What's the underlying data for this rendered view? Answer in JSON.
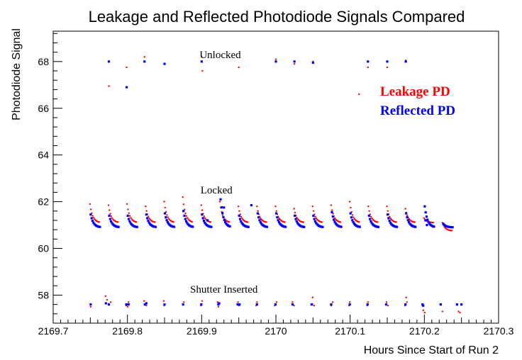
{
  "chart_data": {
    "type": "scatter",
    "title": "Leakage and Reflected Photodiode Signals Compared",
    "xlabel": "Hours Since Start of Run 2",
    "ylabel": "Photodiode Signal",
    "xlim": [
      2169.7,
      2170.3
    ],
    "ylim": [
      56.8,
      69.3
    ],
    "x_ticks": [
      2169.7,
      2169.8,
      2169.9,
      2170.0,
      2170.1,
      2170.2,
      2170.3
    ],
    "x_tick_labels": [
      "2169.7",
      "2169.8",
      "2169.9",
      "2170",
      "2170.1",
      "2170.2",
      "2170.3"
    ],
    "y_ticks": [
      58,
      60,
      62,
      64,
      66,
      68
    ],
    "y_tick_labels": [
      "58",
      "60",
      "62",
      "64",
      "66",
      "68"
    ],
    "grid": false,
    "legend_position": "top-right",
    "annotations": [
      {
        "text": "Unlocked",
        "x": 2169.925,
        "y": 68.15
      },
      {
        "text": "Locked",
        "x": 2169.92,
        "y": 62.35
      },
      {
        "text": "Shutter Inserted",
        "x": 2169.93,
        "y": 58.1
      }
    ],
    "series": [
      {
        "name": "Leakage PD",
        "color": "#ff0000",
        "marker": "dot",
        "unlocked_points": [
          [
            2169.775,
            66.95
          ],
          [
            2169.799,
            67.75
          ],
          [
            2169.823,
            68.2
          ],
          [
            2169.9,
            68.2
          ],
          [
            2169.901,
            67.6
          ],
          [
            2169.95,
            67.75
          ],
          [
            2170.0,
            68.1
          ],
          [
            2170.025,
            67.9
          ],
          [
            2170.05,
            68.0
          ],
          [
            2170.112,
            66.6
          ],
          [
            2170.124,
            67.75
          ],
          [
            2170.15,
            67.75
          ],
          [
            2170.175,
            68.05
          ]
        ],
        "locked_cycles": {
          "starts": [
            2169.7495,
            2169.7745,
            2169.7995,
            2169.8245,
            2169.8495,
            2169.8745,
            2169.8995,
            2169.9245,
            2169.9495,
            2169.9745,
            2169.9995,
            2170.0245,
            2170.0495,
            2170.0745,
            2170.0995,
            2170.1245,
            2170.1495,
            2170.1745,
            2170.1995,
            2170.2245
          ],
          "peaks": [
            61.9,
            61.85,
            61.9,
            61.8,
            62.0,
            62.2,
            61.85,
            62.0,
            61.8,
            61.8,
            61.8,
            61.7,
            61.8,
            61.85,
            62.0,
            61.8,
            61.8,
            61.7,
            61.3,
            61.5
          ],
          "points_per_cycle": 11,
          "step_hours": 0.00125,
          "end_value": 61.1,
          "final_cycle": {
            "peak": 61.1,
            "end_value": 60.75
          }
        },
        "shutter_points": [
          [
            2169.7505,
            57.5
          ],
          [
            2169.7705,
            57.95
          ],
          [
            2169.7725,
            57.8
          ],
          [
            2169.7775,
            57.7
          ],
          [
            2169.7985,
            57.55
          ],
          [
            2169.8005,
            57.5
          ],
          [
            2169.8015,
            57.7
          ],
          [
            2169.8225,
            57.75
          ],
          [
            2169.8255,
            57.55
          ],
          [
            2169.849,
            57.75
          ],
          [
            2169.8495,
            57.55
          ],
          [
            2169.876,
            57.7
          ],
          [
            2169.899,
            57.55
          ],
          [
            2169.9005,
            57.75
          ],
          [
            2169.9215,
            57.7
          ],
          [
            2169.9225,
            57.5
          ],
          [
            2169.949,
            57.7
          ],
          [
            2169.9505,
            57.55
          ],
          [
            2169.9735,
            57.55
          ],
          [
            2169.9745,
            57.7
          ],
          [
            2169.9985,
            57.55
          ],
          [
            2170.001,
            57.7
          ],
          [
            2170.0225,
            57.7
          ],
          [
            2170.0245,
            57.55
          ],
          [
            2170.0475,
            57.6
          ],
          [
            2170.0495,
            57.9
          ],
          [
            2170.0515,
            57.55
          ],
          [
            2170.0745,
            57.55
          ],
          [
            2170.0765,
            57.7
          ],
          [
            2170.0985,
            57.55
          ],
          [
            2170.0995,
            57.7
          ],
          [
            2170.123,
            57.55
          ],
          [
            2170.124,
            57.7
          ],
          [
            2170.149,
            57.7
          ],
          [
            2170.151,
            57.55
          ],
          [
            2170.174,
            57.55
          ],
          [
            2170.1755,
            57.9
          ],
          [
            2170.1765,
            57.7
          ],
          [
            2170.1975,
            57.55
          ],
          [
            2170.1985,
            57.35
          ],
          [
            2170.2005,
            57.25
          ],
          [
            2170.2215,
            57.6
          ],
          [
            2170.2245,
            57.3
          ],
          [
            2170.246,
            57.3
          ],
          [
            2170.248,
            57.25
          ]
        ]
      },
      {
        "name": "Reflected PD",
        "color": "#0000ff",
        "marker": "square",
        "unlocked_points": [
          [
            2169.775,
            68.0
          ],
          [
            2169.799,
            66.9
          ],
          [
            2169.823,
            68.0
          ],
          [
            2169.85,
            67.9
          ],
          [
            2169.9,
            68.0
          ],
          [
            2170.0,
            68.0
          ],
          [
            2170.025,
            68.0
          ],
          [
            2170.05,
            67.95
          ],
          [
            2170.124,
            68.0
          ],
          [
            2170.15,
            68.0
          ],
          [
            2170.175,
            68.0
          ]
        ],
        "locked_cycles": {
          "starts": [
            2169.7505,
            2169.7755,
            2169.8005,
            2169.8255,
            2169.8505,
            2169.8755,
            2169.9005,
            2169.9255,
            2169.9505,
            2169.9755,
            2170.0005,
            2170.0255,
            2170.0505,
            2170.0755,
            2170.1005,
            2170.1255,
            2170.1505,
            2170.1755,
            2170.2005,
            2170.2255
          ],
          "peaks": [
            61.45,
            61.4,
            61.4,
            61.45,
            61.5,
            61.6,
            61.45,
            62.1,
            61.4,
            61.5,
            61.5,
            61.4,
            61.4,
            61.55,
            61.5,
            61.4,
            61.45,
            61.5,
            61.8,
            61.55
          ],
          "points_per_cycle": 11,
          "step_hours": 0.00125,
          "end_value": 60.9,
          "final_cycle": {
            "peak": 61.05,
            "end_value": 60.9
          },
          "extra_points": [
            [
              2169.908,
              61.2
            ],
            [
              2169.93,
              61.75
            ],
            [
              2169.967,
              61.85
            ],
            [
              2170.2015,
              61.2
            ],
            [
              2170.2035,
              61.0
            ]
          ]
        },
        "shutter_points": [
          [
            2169.7505,
            57.6
          ],
          [
            2169.771,
            57.65
          ],
          [
            2169.775,
            57.6
          ],
          [
            2169.7985,
            57.6
          ],
          [
            2169.8015,
            57.6
          ],
          [
            2169.8235,
            57.6
          ],
          [
            2169.8255,
            57.65
          ],
          [
            2169.85,
            57.6
          ],
          [
            2169.875,
            57.6
          ],
          [
            2169.8995,
            57.6
          ],
          [
            2169.9225,
            57.6
          ],
          [
            2169.9235,
            57.65
          ],
          [
            2169.9485,
            57.6
          ],
          [
            2169.951,
            57.6
          ],
          [
            2169.9745,
            57.6
          ],
          [
            2169.9995,
            57.6
          ],
          [
            2170.0225,
            57.6
          ],
          [
            2170.0485,
            57.6
          ],
          [
            2170.0745,
            57.6
          ],
          [
            2170.0995,
            57.6
          ],
          [
            2170.1235,
            57.6
          ],
          [
            2170.1485,
            57.6
          ],
          [
            2170.1745,
            57.6
          ],
          [
            2170.1975,
            57.6
          ],
          [
            2170.1985,
            57.55
          ],
          [
            2170.222,
            57.6
          ],
          [
            2170.244,
            57.6
          ],
          [
            2170.25,
            57.6
          ]
        ]
      }
    ]
  }
}
